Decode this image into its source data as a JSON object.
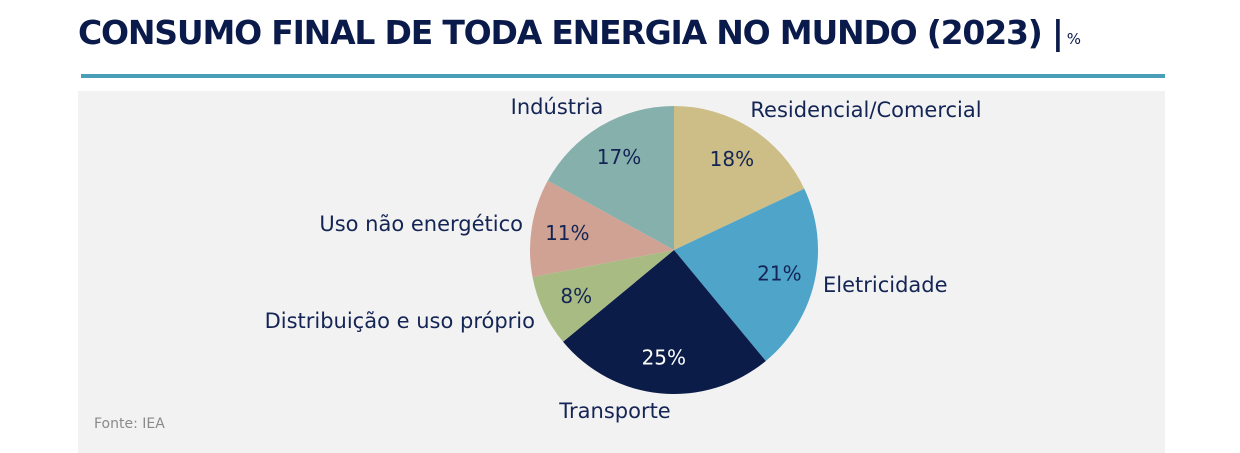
{
  "header": {
    "title": "CONSUMO FINAL DE TODA ENERGIA NO MUNDO (2023) |",
    "unit": "%"
  },
  "source": "Fonte: IEA",
  "colors": {
    "title": "#0a1a4a",
    "rule": "#4a9fb8",
    "panel": "#f2f2f2"
  },
  "chart_data": {
    "type": "pie",
    "title": "CONSUMO FINAL DE TODA ENERGIA NO MUNDO (2023)",
    "unit": "%",
    "slices": [
      {
        "label": "Residencial/Comercial",
        "value": 18,
        "value_label": "18%",
        "color": "#cdbd86",
        "value_color": "#142555"
      },
      {
        "label": "Eletricidade",
        "value": 21,
        "value_label": "21%",
        "color": "#4ea4c9",
        "value_color": "#142555"
      },
      {
        "label": "Transporte",
        "value": 25,
        "value_label": "25%",
        "color": "#0c1c48",
        "value_color": "#ffffff"
      },
      {
        "label": "Distribuição e uso próprio",
        "value": 8,
        "value_label": "8%",
        "color": "#a8bb82",
        "value_color": "#142555"
      },
      {
        "label": "Uso não energético",
        "value": 11,
        "value_label": "11%",
        "color": "#cfa294",
        "value_color": "#142555"
      },
      {
        "label": "Indústria",
        "value": 17,
        "value_label": "17%",
        "color": "#86b0ac",
        "value_color": "#142555"
      }
    ]
  }
}
